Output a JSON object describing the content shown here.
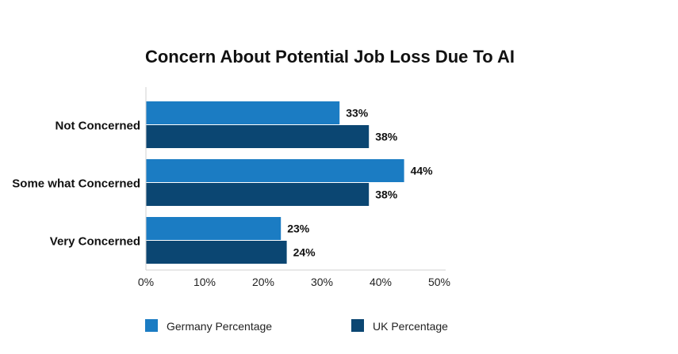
{
  "chart_data": {
    "type": "bar",
    "orientation": "horizontal",
    "title": "Concern About Potential Job Loss Due To AI",
    "categories": [
      "Not Concerned",
      "Some what Concerned",
      "Very Concerned"
    ],
    "series": [
      {
        "name": "Germany Percentage",
        "color": "#1b7cc3",
        "values": [
          33,
          44,
          23
        ],
        "labels": [
          "33%",
          "44%",
          "23%"
        ]
      },
      {
        "name": "UK Percentage",
        "color": "#0b4672",
        "values": [
          38,
          38,
          24
        ],
        "labels": [
          "38%",
          "38%",
          "24%"
        ]
      }
    ],
    "xlim": [
      0,
      50
    ],
    "xticks": [
      0,
      10,
      20,
      30,
      40,
      50
    ],
    "xtick_labels": [
      "0%",
      "10%",
      "20%",
      "30%",
      "40%",
      "50%"
    ],
    "xlabel": "",
    "ylabel": "",
    "grid": false,
    "legend_position": "bottom"
  }
}
